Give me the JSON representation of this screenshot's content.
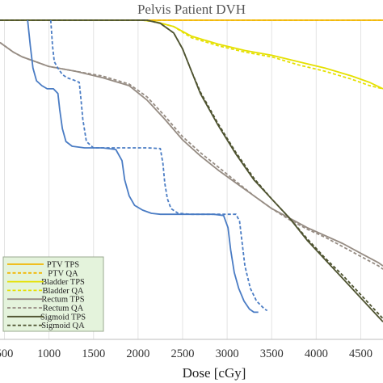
{
  "chart_data": {
    "type": "line",
    "title": "Pelvis Patient DVH",
    "xlabel": "Dose [cGy]",
    "ylabel": "",
    "xlim": [
      450,
      4750
    ],
    "ylim": [
      0,
      100
    ],
    "x_ticks": [
      "500",
      "1000",
      "1500",
      "2000",
      "2500",
      "3000",
      "3500",
      "4000",
      "4500"
    ],
    "grid": "vertical",
    "legend_position": "bottom-left",
    "series": [
      {
        "name": "PTV TPS",
        "color": "#f2b705",
        "dash": "solid",
        "points": [
          [
            450,
            100
          ],
          [
            4750,
            100
          ]
        ]
      },
      {
        "name": "PTV QA",
        "color": "#f2b705",
        "dash": "dashed",
        "points": [
          [
            450,
            100
          ],
          [
            4750,
            100
          ]
        ]
      },
      {
        "name": "Bladder TPS",
        "color": "#e5e000",
        "dash": "solid",
        "points": [
          [
            450,
            100
          ],
          [
            2050,
            100
          ],
          [
            2200,
            99.5
          ],
          [
            2400,
            98
          ],
          [
            2600,
            95
          ],
          [
            2900,
            92.5
          ],
          [
            3200,
            90.5
          ],
          [
            3500,
            89
          ],
          [
            3800,
            87
          ],
          [
            4100,
            85
          ],
          [
            4400,
            82.5
          ],
          [
            4600,
            80.5
          ],
          [
            4750,
            78.5
          ]
        ]
      },
      {
        "name": "Bladder QA",
        "color": "#e5e000",
        "dash": "dashed",
        "points": [
          [
            450,
            100
          ],
          [
            2050,
            100
          ],
          [
            2200,
            99.5
          ],
          [
            2400,
            98
          ],
          [
            2600,
            94.5
          ],
          [
            2900,
            92
          ],
          [
            3200,
            90
          ],
          [
            3500,
            88.5
          ],
          [
            3800,
            86
          ],
          [
            4100,
            84
          ],
          [
            4400,
            81.5
          ],
          [
            4600,
            79.5
          ],
          [
            4750,
            78.5
          ]
        ]
      },
      {
        "name": "Rectum TPS",
        "color": "#968c83",
        "dash": "solid",
        "points": [
          [
            450,
            93
          ],
          [
            600,
            90
          ],
          [
            700,
            88.5
          ],
          [
            800,
            87.5
          ],
          [
            1000,
            85.5
          ],
          [
            1300,
            84
          ],
          [
            1600,
            82
          ],
          [
            1900,
            79.5
          ],
          [
            2100,
            75
          ],
          [
            2300,
            69
          ],
          [
            2500,
            62.5
          ],
          [
            2700,
            57.5
          ],
          [
            2900,
            53
          ],
          [
            3100,
            49
          ],
          [
            3300,
            45
          ],
          [
            3500,
            41
          ],
          [
            3700,
            38
          ],
          [
            3900,
            35
          ],
          [
            4100,
            32.5
          ],
          [
            4300,
            30
          ],
          [
            4500,
            27
          ],
          [
            4700,
            24
          ],
          [
            4750,
            23
          ]
        ]
      },
      {
        "name": "Rectum QA",
        "color": "#968c83",
        "dash": "dashed",
        "points": [
          [
            450,
            93
          ],
          [
            600,
            90
          ],
          [
            700,
            88.5
          ],
          [
            800,
            87.5
          ],
          [
            1000,
            85.5
          ],
          [
            1300,
            84
          ],
          [
            1600,
            82.5
          ],
          [
            1900,
            80
          ],
          [
            2100,
            76
          ],
          [
            2300,
            70
          ],
          [
            2500,
            63.5
          ],
          [
            2700,
            58.5
          ],
          [
            2900,
            54
          ],
          [
            3100,
            49.5
          ],
          [
            3300,
            45
          ],
          [
            3500,
            41
          ],
          [
            3700,
            37.5
          ],
          [
            3900,
            34.5
          ],
          [
            4100,
            32
          ],
          [
            4300,
            29
          ],
          [
            4500,
            26
          ],
          [
            4700,
            23
          ],
          [
            4750,
            22
          ]
        ]
      },
      {
        "name": "Sigmoid TPS",
        "color": "#4e5330",
        "dash": "solid",
        "points": [
          [
            450,
            100
          ],
          [
            2100,
            100
          ],
          [
            2250,
            99
          ],
          [
            2400,
            96
          ],
          [
            2500,
            91
          ],
          [
            2600,
            84
          ],
          [
            2700,
            77
          ],
          [
            2900,
            67
          ],
          [
            3100,
            58
          ],
          [
            3300,
            50
          ],
          [
            3500,
            44
          ],
          [
            3700,
            38
          ],
          [
            3900,
            31
          ],
          [
            4100,
            25
          ],
          [
            4300,
            19
          ],
          [
            4500,
            13
          ],
          [
            4700,
            7
          ],
          [
            4750,
            5.5
          ]
        ]
      },
      {
        "name": "Sigmoid QA",
        "color": "#4e5330",
        "dash": "dashed",
        "points": [
          [
            450,
            100
          ],
          [
            2100,
            100
          ],
          [
            2250,
            99
          ],
          [
            2400,
            96
          ],
          [
            2500,
            91
          ],
          [
            2600,
            84
          ],
          [
            2700,
            77.5
          ],
          [
            2900,
            67.5
          ],
          [
            3100,
            58.5
          ],
          [
            3300,
            50.5
          ],
          [
            3500,
            44
          ],
          [
            3700,
            38
          ],
          [
            3900,
            31.5
          ],
          [
            4100,
            25.5
          ],
          [
            4300,
            20
          ],
          [
            4500,
            14
          ],
          [
            4700,
            8
          ],
          [
            4750,
            6.5
          ]
        ]
      },
      {
        "name": "",
        "color": "#4a7cc4",
        "dash": "solid",
        "points": [
          [
            760,
            100
          ],
          [
            790,
            92
          ],
          [
            820,
            85
          ],
          [
            860,
            81
          ],
          [
            920,
            79.5
          ],
          [
            980,
            78.5
          ],
          [
            1050,
            78.5
          ],
          [
            1100,
            77
          ],
          [
            1120,
            72
          ],
          [
            1150,
            66
          ],
          [
            1190,
            62
          ],
          [
            1260,
            60.5
          ],
          [
            1400,
            60
          ],
          [
            1600,
            60
          ],
          [
            1750,
            59.5
          ],
          [
            1820,
            56
          ],
          [
            1850,
            50
          ],
          [
            1900,
            45
          ],
          [
            1960,
            42
          ],
          [
            2050,
            40.5
          ],
          [
            2150,
            39.5
          ],
          [
            2250,
            39.2
          ],
          [
            2500,
            39.2
          ],
          [
            2850,
            39.2
          ],
          [
            2960,
            38.8
          ],
          [
            3010,
            35
          ],
          [
            3040,
            28
          ],
          [
            3080,
            21
          ],
          [
            3130,
            16
          ],
          [
            3190,
            12
          ],
          [
            3250,
            9.5
          ],
          [
            3300,
            8.5
          ],
          [
            3350,
            8.5
          ]
        ]
      },
      {
        "name": "",
        "color": "#4a7cc4",
        "dash": "dashed",
        "points": [
          [
            1020,
            100
          ],
          [
            1040,
            92
          ],
          [
            1060,
            87
          ],
          [
            1100,
            85
          ],
          [
            1150,
            83
          ],
          [
            1200,
            82
          ],
          [
            1300,
            81
          ],
          [
            1340,
            80.5
          ],
          [
            1360,
            75
          ],
          [
            1380,
            69
          ],
          [
            1420,
            62
          ],
          [
            1500,
            60
          ],
          [
            1700,
            60
          ],
          [
            2100,
            60
          ],
          [
            2250,
            59.8
          ],
          [
            2280,
            55
          ],
          [
            2300,
            49
          ],
          [
            2330,
            44
          ],
          [
            2370,
            41
          ],
          [
            2450,
            39.5
          ],
          [
            2600,
            39.2
          ],
          [
            2900,
            39.2
          ],
          [
            3100,
            39.2
          ],
          [
            3140,
            37
          ],
          [
            3170,
            30
          ],
          [
            3200,
            23
          ],
          [
            3260,
            16
          ],
          [
            3330,
            12
          ],
          [
            3420,
            9.5
          ],
          [
            3450,
            9
          ]
        ]
      }
    ]
  }
}
